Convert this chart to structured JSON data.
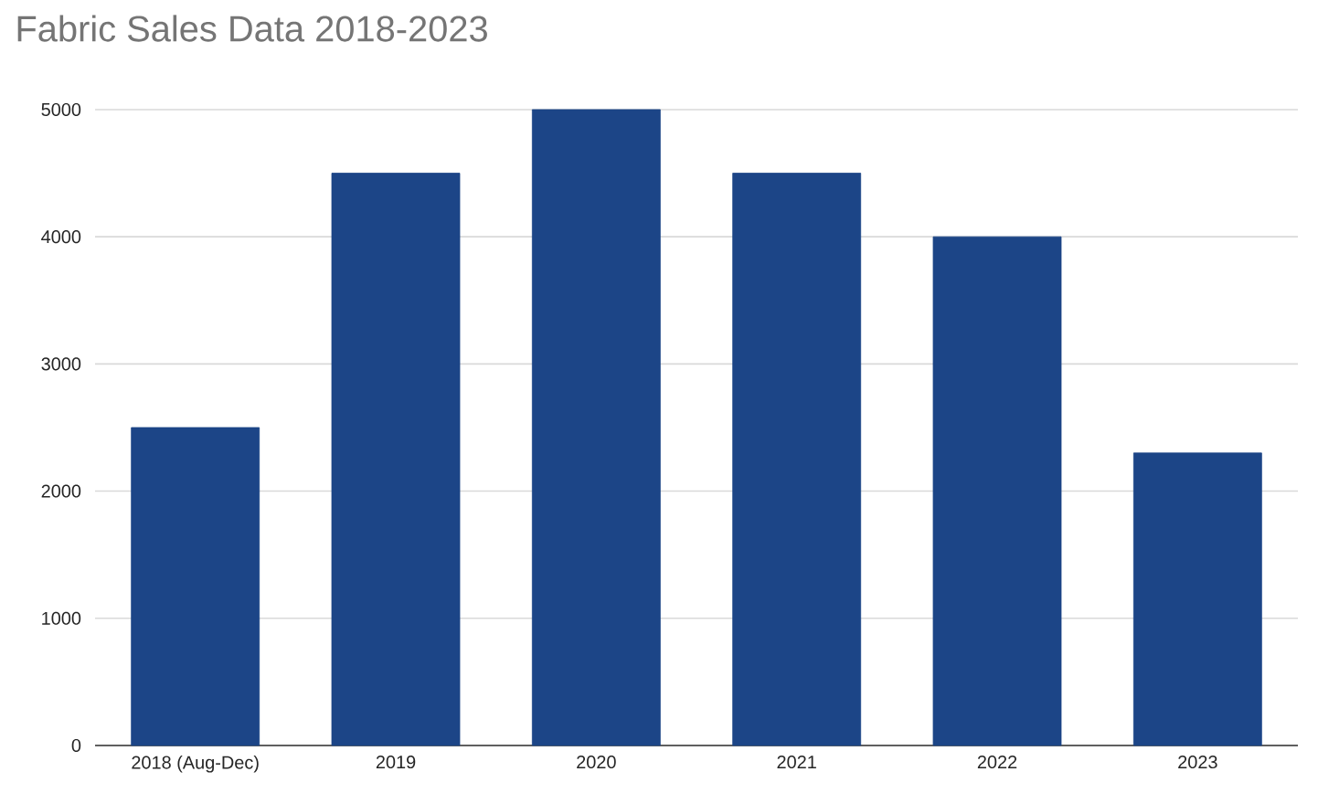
{
  "chart_data": {
    "type": "bar",
    "title": "Fabric Sales Data 2018-2023",
    "categories": [
      "2018 (Aug-Dec)",
      "2019",
      "2020",
      "2021",
      "2022",
      "2023"
    ],
    "values": [
      2500,
      4500,
      5000,
      4500,
      4000,
      2300
    ],
    "color": "#1c4587",
    "ylim": [
      0,
      5000
    ],
    "yticks": [
      0,
      1000,
      2000,
      3000,
      4000,
      5000
    ],
    "grid": "y"
  }
}
